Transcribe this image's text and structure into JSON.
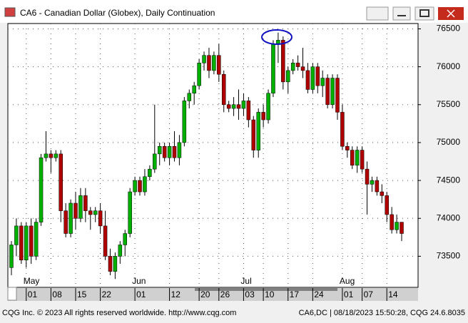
{
  "window_title": "CA6 - Canadian Dollar (Globex), Daily Continuation",
  "footer_left": "CQG Inc. © 2023 All rights reserved worldwide. http://www.cqg.com",
  "footer_right": "CA6,DC | 08/18/2023 15:50:28, CQG 24.6.8035",
  "chart_data": {
    "type": "candlestick",
    "categories": [
      null,
      null,
      null,
      "01",
      null,
      null,
      null,
      null,
      "08",
      null,
      null,
      null,
      null,
      "15",
      null,
      null,
      null,
      null,
      "22",
      null,
      null,
      null,
      null,
      null,
      null,
      "01",
      null,
      null,
      null,
      null,
      null,
      null,
      "12",
      null,
      null,
      null,
      null,
      null,
      "20",
      null,
      null,
      null,
      "26",
      null,
      null,
      null,
      null,
      "03",
      null,
      null,
      null,
      "10",
      null,
      null,
      null,
      null,
      "17",
      null,
      null,
      null,
      null,
      "24",
      null,
      null,
      null,
      null,
      null,
      "01",
      null,
      null,
      null,
      "07",
      null,
      null,
      null,
      null,
      "14",
      null,
      null,
      null
    ],
    "months": [
      null,
      null,
      null,
      "May",
      null,
      null,
      null,
      null,
      null,
      null,
      null,
      null,
      null,
      null,
      null,
      null,
      null,
      null,
      null,
      null,
      null,
      null,
      null,
      null,
      null,
      "Jun",
      null,
      null,
      null,
      null,
      null,
      null,
      null,
      null,
      null,
      null,
      null,
      null,
      null,
      null,
      null,
      null,
      null,
      null,
      null,
      null,
      null,
      "Jul",
      null,
      null,
      null,
      null,
      null,
      null,
      null,
      null,
      null,
      null,
      null,
      null,
      null,
      null,
      null,
      null,
      null,
      null,
      null,
      "Aug",
      null,
      null,
      null,
      null,
      null,
      null,
      null,
      null,
      null,
      null,
      null,
      null
    ],
    "open": [
      73350,
      73650,
      73900,
      73450,
      73900,
      73500,
      73950,
      74800,
      74850,
      74800,
      74850,
      74100,
      73800,
      74200,
      74000,
      74300,
      74100,
      74050,
      74100,
      73900,
      73500,
      73300,
      73500,
      73650,
      73800,
      74350,
      74500,
      74350,
      74550,
      74650,
      74850,
      74950,
      74800,
      74950,
      74800,
      75000,
      75550,
      75650,
      75750,
      76050,
      76150,
      75950,
      76150,
      75900,
      75500,
      75450,
      75500,
      75450,
      75550,
      75300,
      74900,
      75400,
      75300,
      75650,
      76300,
      76350,
      75800,
      75950,
      76050,
      76000,
      75950,
      75700,
      76000,
      75750,
      75850,
      75500,
      75850,
      75400,
      74950,
      74900,
      74700,
      74900,
      74650,
      74450,
      74500,
      74350,
      74300,
      74050,
      73850,
      73950
    ],
    "high": [
      73700,
      74000,
      73950,
      73950,
      74000,
      74000,
      74850,
      75150,
      74900,
      74900,
      74900,
      74200,
      74250,
      74350,
      74400,
      74400,
      74150,
      74150,
      74200,
      74100,
      73600,
      73550,
      73700,
      73850,
      74400,
      74550,
      74550,
      74650,
      74700,
      75500,
      75000,
      75000,
      75000,
      75150,
      75100,
      75600,
      75700,
      75800,
      76100,
      76200,
      76250,
      76200,
      76300,
      75950,
      75550,
      75600,
      75700,
      75650,
      75600,
      75350,
      75450,
      75500,
      75700,
      76350,
      76450,
      76400,
      76000,
      76100,
      76150,
      76250,
      76050,
      76050,
      76050,
      75950,
      75900,
      75900,
      75900,
      75500,
      75000,
      74950,
      74950,
      74950,
      74750,
      74550,
      74550,
      74450,
      74350,
      74150,
      74050,
      73950
    ],
    "low": [
      73250,
      73500,
      73400,
      73350,
      73400,
      73450,
      73900,
      74750,
      74600,
      74750,
      73950,
      73750,
      73750,
      73850,
      73950,
      73950,
      73850,
      73950,
      73800,
      73450,
      73250,
      73200,
      73400,
      73500,
      73750,
      74300,
      74300,
      74300,
      74500,
      74600,
      74700,
      74750,
      74700,
      74750,
      74700,
      74950,
      75450,
      75500,
      75700,
      75950,
      75850,
      75900,
      75800,
      75400,
      75400,
      75350,
      75300,
      75350,
      75200,
      74800,
      74800,
      75200,
      75250,
      75600,
      76050,
      75700,
      75650,
      75900,
      75950,
      75850,
      75650,
      75650,
      75650,
      75600,
      75450,
      75450,
      75300,
      74900,
      74800,
      74650,
      74600,
      74600,
      74050,
      74350,
      74300,
      74200,
      73950,
      73800,
      73800,
      73700
    ],
    "close": [
      73650,
      73900,
      73450,
      73900,
      73500,
      73950,
      74800,
      74850,
      74800,
      74850,
      74100,
      73800,
      74200,
      74000,
      74300,
      74100,
      74050,
      74100,
      73900,
      73500,
      73300,
      73500,
      73650,
      73800,
      74350,
      74500,
      74350,
      74550,
      74650,
      74850,
      74950,
      74800,
      74950,
      74800,
      75000,
      75550,
      75650,
      75750,
      76050,
      76150,
      75950,
      76150,
      75900,
      75500,
      75450,
      75500,
      75450,
      75550,
      75300,
      74900,
      75400,
      75300,
      75650,
      76300,
      76350,
      75800,
      75950,
      76050,
      76000,
      75950,
      75700,
      76000,
      75750,
      75850,
      75500,
      75850,
      75400,
      74950,
      74900,
      74700,
      74900,
      74650,
      74450,
      74500,
      74350,
      74300,
      74050,
      73850,
      73950,
      73800
    ],
    "up_color": "#00b000",
    "down_color": "#b00000",
    "ylim": [
      73090,
      76570
    ],
    "yticks": [
      73500,
      74000,
      74500,
      75000,
      75500,
      76000,
      76500
    ],
    "grid": true
  }
}
